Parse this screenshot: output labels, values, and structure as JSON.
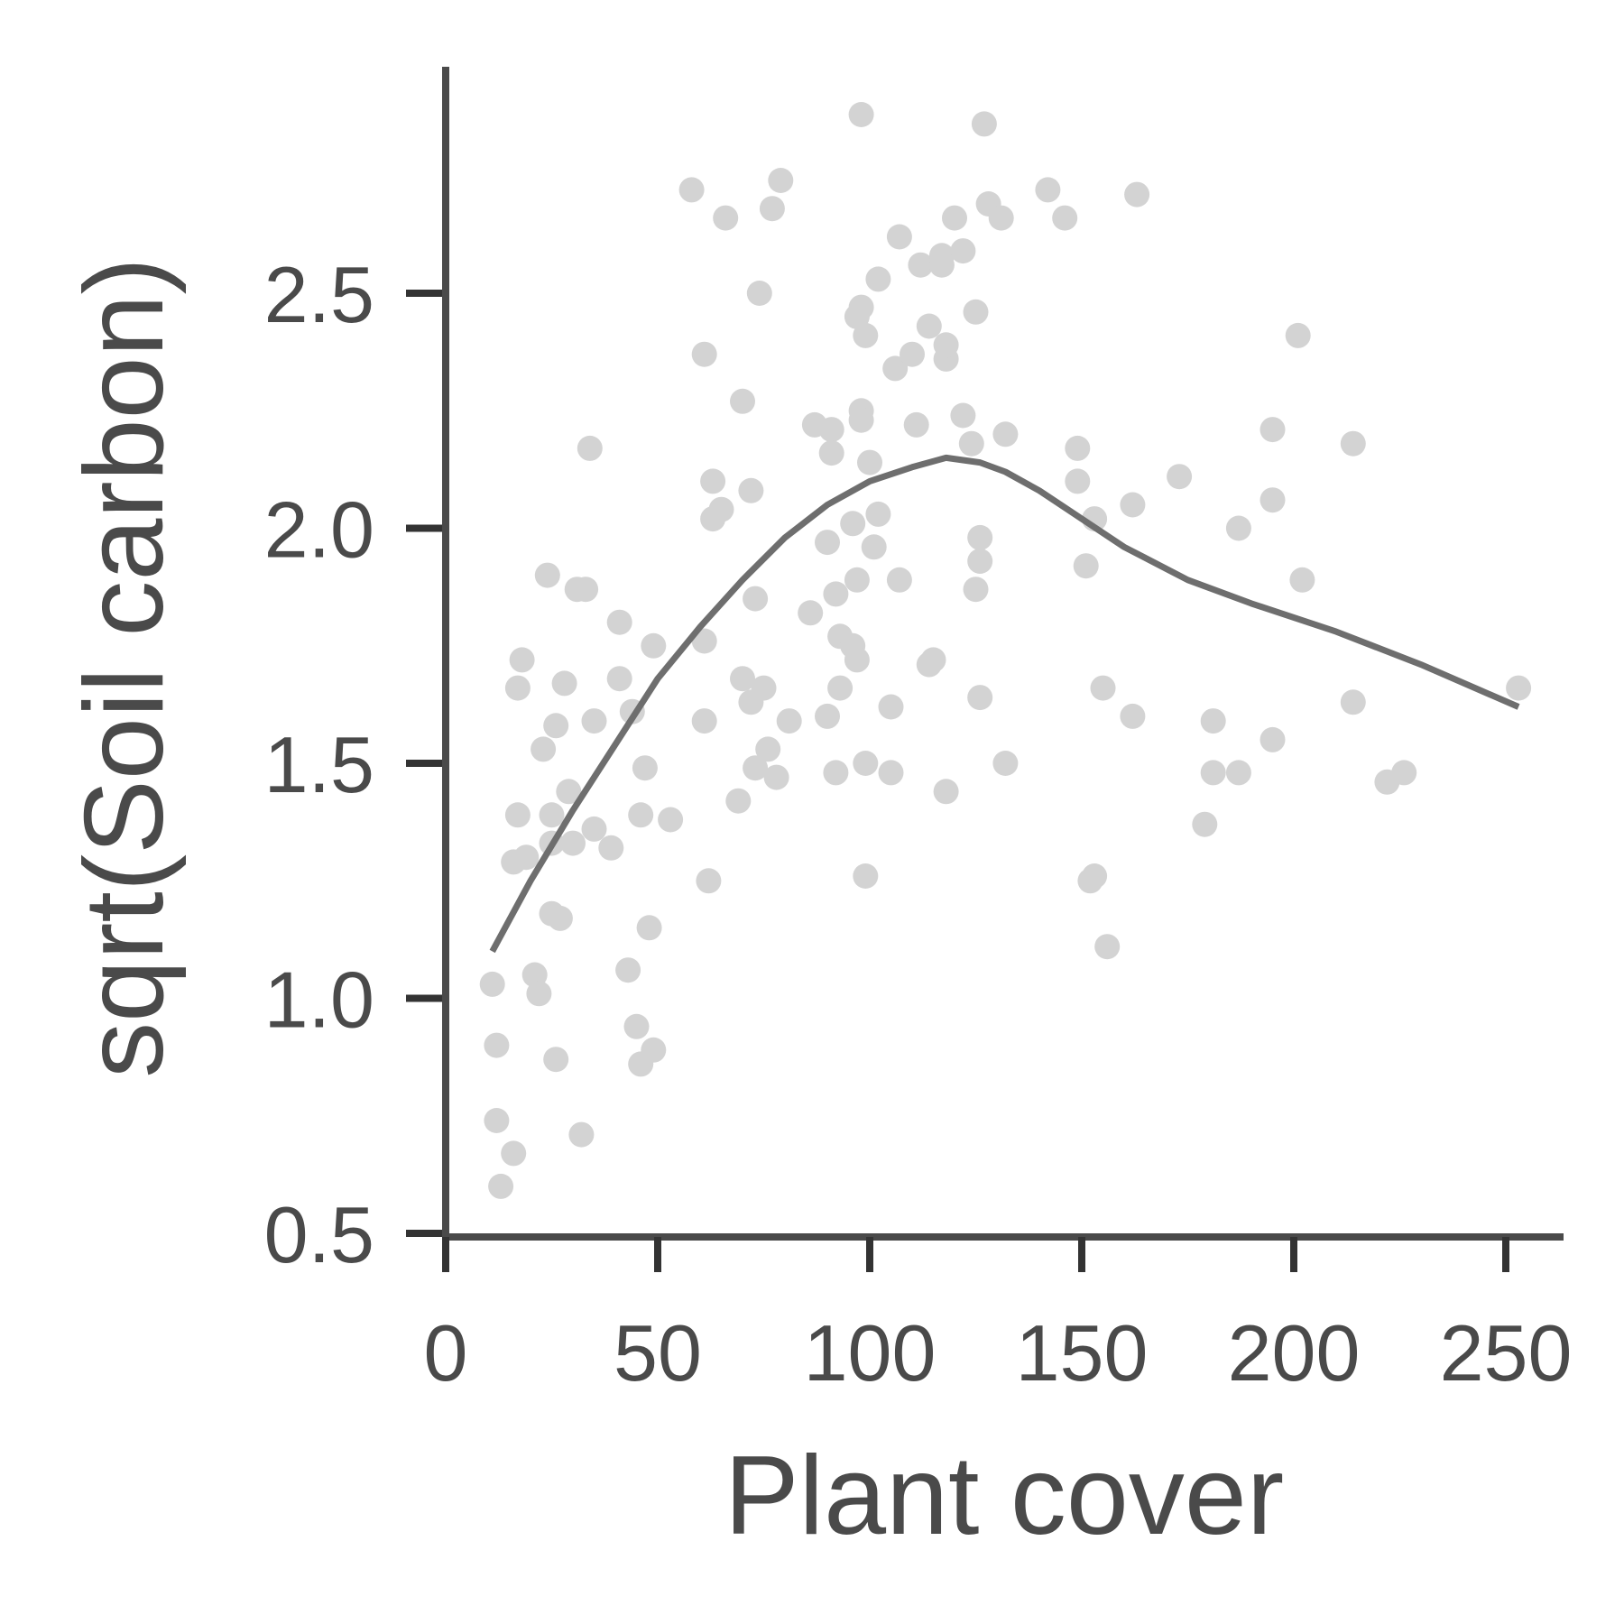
{
  "chart_data": {
    "type": "scatter",
    "title": "",
    "xlabel": "Plant cover",
    "ylabel": "sqrt(Soil carbon)",
    "xlim": [
      0,
      265
    ],
    "ylim": [
      0.5,
      3.0
    ],
    "xticks": [
      0,
      50,
      100,
      150,
      200,
      250
    ],
    "xtick_labels": [
      "0",
      "50",
      "100",
      "150",
      "200",
      "250"
    ],
    "yticks": [
      0.5,
      1.0,
      1.5,
      2.0,
      2.5
    ],
    "ytick_labels": [
      "0.5",
      "1.0",
      "1.5",
      "2.0",
      "2.5"
    ],
    "grid": false,
    "legend": "none",
    "colors": {
      "points": "#d3d3d3",
      "line": "#6e6e6e",
      "axis": "#4a4a4a",
      "text": "#4a4a4a"
    },
    "points": [
      [
        11,
        1.03
      ],
      [
        12,
        0.74
      ],
      [
        12,
        0.9
      ],
      [
        13,
        0.6
      ],
      [
        16,
        0.67
      ],
      [
        17,
        1.66
      ],
      [
        17,
        1.39
      ],
      [
        18,
        1.72
      ],
      [
        16,
        1.29
      ],
      [
        19,
        1.3
      ],
      [
        21,
        1.05
      ],
      [
        23,
        1.53
      ],
      [
        22,
        1.01
      ],
      [
        24,
        1.9
      ],
      [
        25,
        1.39
      ],
      [
        25,
        1.33
      ],
      [
        25,
        1.18
      ],
      [
        26,
        1.58
      ],
      [
        26,
        0.87
      ],
      [
        27,
        1.17
      ],
      [
        28,
        1.67
      ],
      [
        29,
        1.44
      ],
      [
        30,
        1.33
      ],
      [
        31,
        1.87
      ],
      [
        32,
        0.71
      ],
      [
        33,
        1.87
      ],
      [
        34,
        2.17
      ],
      [
        35,
        1.36
      ],
      [
        35,
        1.59
      ],
      [
        39,
        1.32
      ],
      [
        41,
        1.68
      ],
      [
        41,
        1.8
      ],
      [
        43,
        1.06
      ],
      [
        44,
        1.61
      ],
      [
        45,
        0.94
      ],
      [
        46,
        0.86
      ],
      [
        46,
        1.39
      ],
      [
        47,
        1.49
      ],
      [
        48,
        1.15
      ],
      [
        49,
        0.89
      ],
      [
        49,
        1.75
      ],
      [
        53,
        1.38
      ],
      [
        58,
        2.72
      ],
      [
        61,
        2.37
      ],
      [
        61,
        1.59
      ],
      [
        61,
        1.76
      ],
      [
        62,
        1.25
      ],
      [
        63,
        2.02
      ],
      [
        63,
        2.1
      ],
      [
        65,
        2.04
      ],
      [
        66,
        2.66
      ],
      [
        69,
        1.42
      ],
      [
        70,
        2.27
      ],
      [
        70,
        1.68
      ],
      [
        72,
        1.63
      ],
      [
        72,
        2.08
      ],
      [
        73,
        1.85
      ],
      [
        73,
        1.49
      ],
      [
        74,
        2.5
      ],
      [
        75,
        1.66
      ],
      [
        76,
        1.53
      ],
      [
        77,
        2.68
      ],
      [
        78,
        1.47
      ],
      [
        79,
        2.74
      ],
      [
        81,
        1.59
      ],
      [
        86,
        1.82
      ],
      [
        87,
        2.22
      ],
      [
        90,
        1.97
      ],
      [
        91,
        2.21
      ],
      [
        90,
        1.6
      ],
      [
        91,
        2.16
      ],
      [
        92,
        1.86
      ],
      [
        92,
        1.48
      ],
      [
        93,
        1.77
      ],
      [
        93,
        1.66
      ],
      [
        96,
        2.01
      ],
      [
        96,
        1.75
      ],
      [
        97,
        1.72
      ],
      [
        97,
        1.89
      ],
      [
        97,
        2.45
      ],
      [
        98,
        2.88
      ],
      [
        98,
        2.47
      ],
      [
        98,
        2.25
      ],
      [
        98,
        2.23
      ],
      [
        99,
        2.41
      ],
      [
        99,
        1.5
      ],
      [
        99,
        1.26
      ],
      [
        100,
        2.14
      ],
      [
        101,
        1.96
      ],
      [
        102,
        2.03
      ],
      [
        102,
        2.53
      ],
      [
        105,
        1.62
      ],
      [
        106,
        2.34
      ],
      [
        105,
        1.48
      ],
      [
        107,
        1.89
      ],
      [
        107,
        2.62
      ],
      [
        110,
        2.37
      ],
      [
        111,
        2.22
      ],
      [
        112,
        2.56
      ],
      [
        114,
        2.43
      ],
      [
        114,
        1.71
      ],
      [
        115,
        1.72
      ],
      [
        117,
        2.56
      ],
      [
        117,
        2.58
      ],
      [
        118,
        2.36
      ],
      [
        118,
        2.39
      ],
      [
        118,
        1.44
      ],
      [
        120,
        2.66
      ],
      [
        122,
        2.24
      ],
      [
        122,
        2.59
      ],
      [
        124,
        2.18
      ],
      [
        125,
        1.87
      ],
      [
        125,
        2.46
      ],
      [
        126,
        1.98
      ],
      [
        126,
        1.93
      ],
      [
        126,
        1.64
      ],
      [
        127,
        2.86
      ],
      [
        128,
        2.69
      ],
      [
        131,
        2.66
      ],
      [
        132,
        1.5
      ],
      [
        132,
        2.2
      ],
      [
        142,
        2.72
      ],
      [
        146,
        2.66
      ],
      [
        149,
        2.17
      ],
      [
        149,
        2.1
      ],
      [
        151,
        1.92
      ],
      [
        153,
        2.02
      ],
      [
        152,
        1.25
      ],
      [
        153,
        1.26
      ],
      [
        155,
        1.66
      ],
      [
        156,
        1.11
      ],
      [
        162,
        2.05
      ],
      [
        162,
        1.6
      ],
      [
        163,
        2.71
      ],
      [
        173,
        2.11
      ],
      [
        179,
        1.37
      ],
      [
        181,
        1.48
      ],
      [
        181,
        1.59
      ],
      [
        187,
        2.0
      ],
      [
        187,
        1.48
      ],
      [
        195,
        2.21
      ],
      [
        195,
        1.55
      ],
      [
        195,
        2.06
      ],
      [
        201,
        2.41
      ],
      [
        202,
        1.89
      ],
      [
        214,
        2.18
      ],
      [
        214,
        1.63
      ],
      [
        222,
        1.46
      ],
      [
        226,
        1.48
      ],
      [
        253,
        1.66
      ]
    ],
    "smooth_line": [
      [
        11,
        1.1
      ],
      [
        20,
        1.25
      ],
      [
        30,
        1.4
      ],
      [
        40,
        1.54
      ],
      [
        50,
        1.68
      ],
      [
        60,
        1.79
      ],
      [
        70,
        1.89
      ],
      [
        80,
        1.98
      ],
      [
        90,
        2.05
      ],
      [
        100,
        2.1
      ],
      [
        110,
        2.13
      ],
      [
        118,
        2.15
      ],
      [
        126,
        2.14
      ],
      [
        132,
        2.12
      ],
      [
        140,
        2.08
      ],
      [
        150,
        2.02
      ],
      [
        160,
        1.96
      ],
      [
        175,
        1.89
      ],
      [
        190,
        1.84
      ],
      [
        210,
        1.78
      ],
      [
        230,
        1.71
      ],
      [
        253,
        1.62
      ]
    ]
  }
}
